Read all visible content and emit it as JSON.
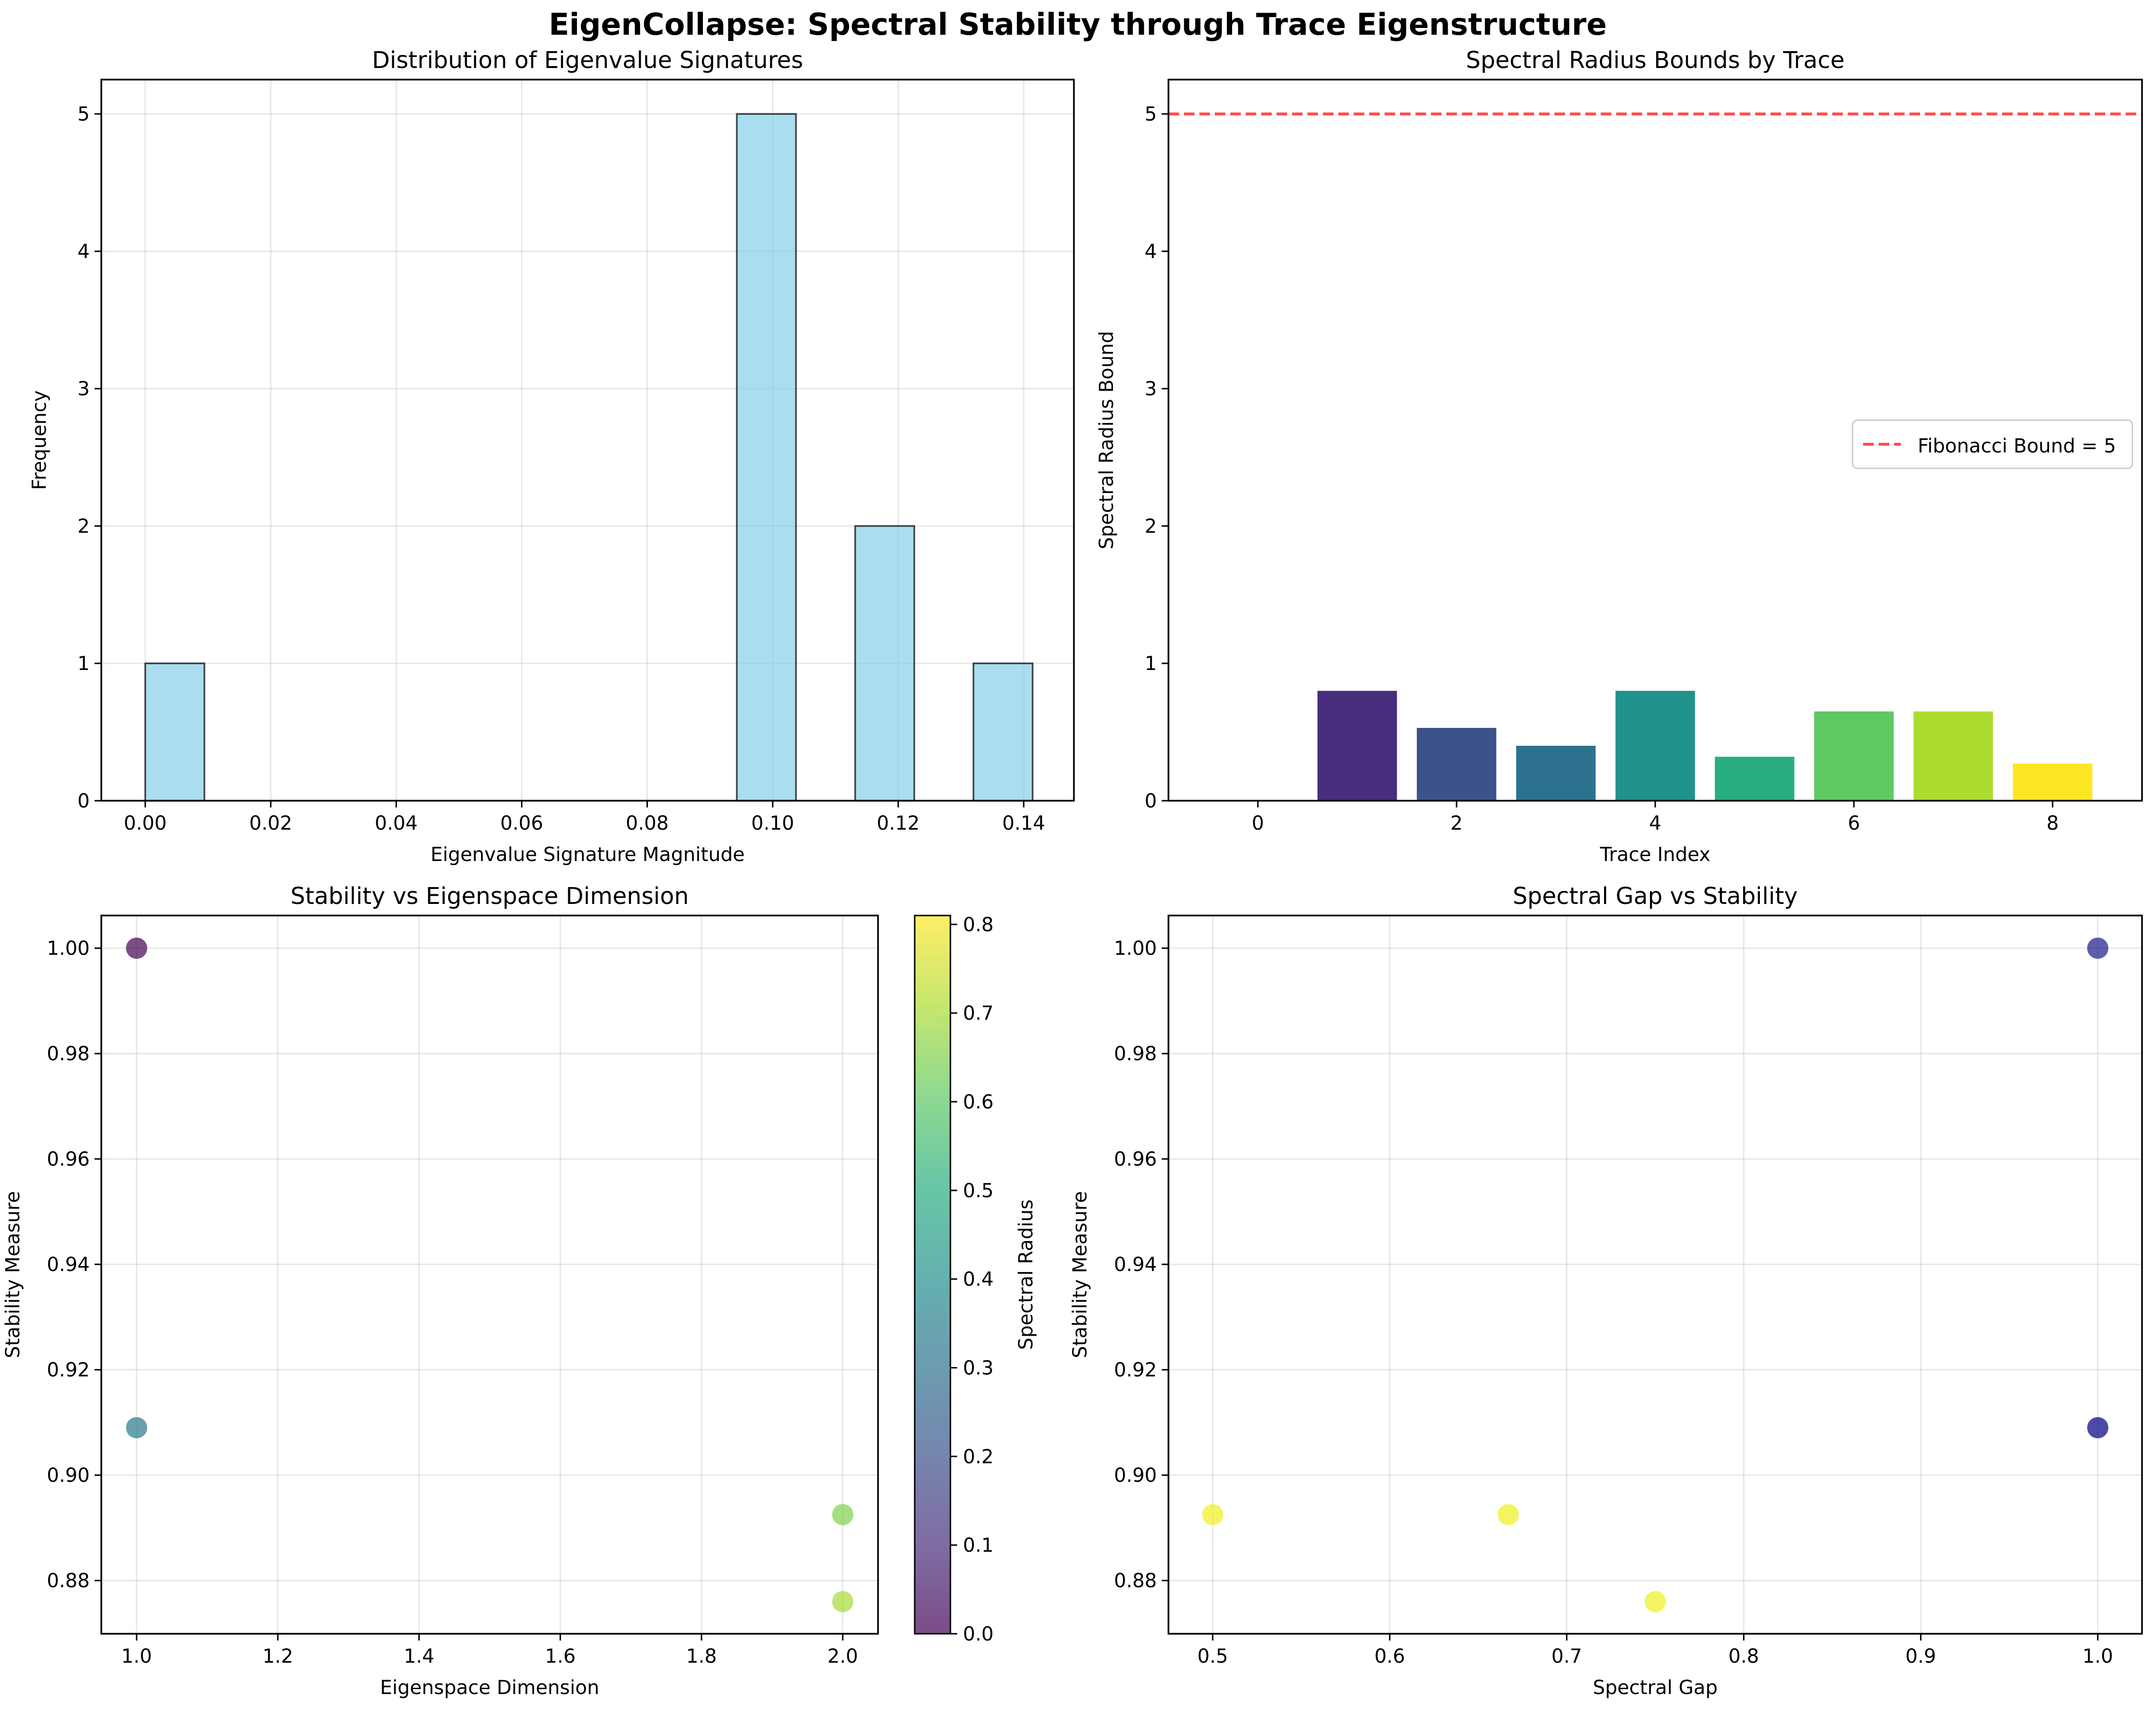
{
  "figure": {
    "title": "EigenCollapse: Spectral Stability through Trace Eigenstructure"
  },
  "chart_data": [
    {
      "type": "bar",
      "subtype": "histogram",
      "title": "Distribution of Eigenvalue Signatures",
      "xlabel": "Eigenvalue Signature Magnitude",
      "ylabel": "Frequency",
      "xlim": [
        -0.007,
        0.148
      ],
      "ylim": [
        0,
        5.25
      ],
      "xticks": [
        0.0,
        0.02,
        0.04,
        0.06,
        0.08,
        0.1,
        0.12,
        0.14
      ],
      "xtick_labels": [
        "0.00",
        "0.02",
        "0.04",
        "0.06",
        "0.08",
        "0.10",
        "0.12",
        "0.14"
      ],
      "yticks": [
        0,
        1,
        2,
        3,
        4,
        5
      ],
      "ytick_labels": [
        "0",
        "1",
        "2",
        "3",
        "4",
        "5"
      ],
      "bins": [
        {
          "x0": 0.0,
          "x1": 0.00943,
          "count": 1
        },
        {
          "x0": 0.00943,
          "x1": 0.01886,
          "count": 0
        },
        {
          "x0": 0.01886,
          "x1": 0.02828,
          "count": 0
        },
        {
          "x0": 0.02828,
          "x1": 0.03771,
          "count": 0
        },
        {
          "x0": 0.03771,
          "x1": 0.04714,
          "count": 0
        },
        {
          "x0": 0.04714,
          "x1": 0.05657,
          "count": 0
        },
        {
          "x0": 0.05657,
          "x1": 0.066,
          "count": 0
        },
        {
          "x0": 0.066,
          "x1": 0.07542,
          "count": 0
        },
        {
          "x0": 0.07542,
          "x1": 0.08485,
          "count": 0
        },
        {
          "x0": 0.08485,
          "x1": 0.09428,
          "count": 0
        },
        {
          "x0": 0.09428,
          "x1": 0.10371,
          "count": 5
        },
        {
          "x0": 0.10371,
          "x1": 0.11314,
          "count": 0
        },
        {
          "x0": 0.11314,
          "x1": 0.12256,
          "count": 2
        },
        {
          "x0": 0.12256,
          "x1": 0.13199,
          "count": 0
        },
        {
          "x0": 0.13199,
          "x1": 0.14142,
          "count": 1
        }
      ],
      "color": "#87ceeb",
      "grid": true
    },
    {
      "type": "bar",
      "title": "Spectral Radius Bounds by Trace",
      "xlabel": "Trace Index",
      "ylabel": "Spectral Radius Bound",
      "xlim": [
        -0.9,
        8.9
      ],
      "ylim": [
        0,
        5.25
      ],
      "xticks": [
        0,
        2,
        4,
        6,
        8
      ],
      "xtick_labels": [
        "0",
        "2",
        "4",
        "6",
        "8"
      ],
      "yticks": [
        0,
        1,
        2,
        3,
        4,
        5
      ],
      "ytick_labels": [
        "0",
        "1",
        "2",
        "3",
        "4",
        "5"
      ],
      "x": [
        0,
        1,
        2,
        3,
        4,
        5,
        6,
        7,
        8
      ],
      "values": [
        0.0,
        0.8,
        0.53,
        0.4,
        0.8,
        0.32,
        0.65,
        0.65,
        0.27
      ],
      "colors": [
        "#440154",
        "#472d7b",
        "#3b528b",
        "#2c728e",
        "#21918c",
        "#28ae80",
        "#5ec962",
        "#addc30",
        "#fde725"
      ],
      "reference_line": {
        "y": 5,
        "label": "Fibonacci Bound = 5",
        "color": "#ff0000"
      },
      "legend": "center-right",
      "grid": false
    },
    {
      "type": "scatter",
      "title": "Stability vs Eigenspace Dimension",
      "xlabel": "Eigenspace Dimension",
      "ylabel": "Stability Measure",
      "xlim": [
        0.95,
        2.05
      ],
      "ylim": [
        0.8699,
        1.0062
      ],
      "xticks": [
        1.0,
        1.2,
        1.4,
        1.6,
        1.8,
        2.0
      ],
      "xtick_labels": [
        "1.0",
        "1.2",
        "1.4",
        "1.6",
        "1.8",
        "2.0"
      ],
      "yticks": [
        0.88,
        0.9,
        0.92,
        0.94,
        0.96,
        0.98,
        1.0
      ],
      "ytick_labels": [
        "0.88",
        "0.90",
        "0.92",
        "0.94",
        "0.96",
        "0.98",
        "1.00"
      ],
      "points": [
        {
          "x": 1.0,
          "y": 1.0,
          "c": 0.0
        },
        {
          "x": 1.0,
          "y": 0.909,
          "c": 0.32
        },
        {
          "x": 2.0,
          "y": 0.8925,
          "c": 0.65
        },
        {
          "x": 2.0,
          "y": 0.876,
          "c": 0.7
        }
      ],
      "colorbar": {
        "label": "Spectral Radius",
        "range": [
          0,
          0.81
        ],
        "ticks": [
          0.0,
          0.1,
          0.2,
          0.3,
          0.4,
          0.5,
          0.6,
          0.7,
          0.8
        ],
        "tick_labels": [
          "0.0",
          "0.1",
          "0.2",
          "0.3",
          "0.4",
          "0.5",
          "0.6",
          "0.7",
          "0.8"
        ],
        "colormap": "viridis"
      },
      "grid": true
    },
    {
      "type": "scatter",
      "title": "Spectral Gap vs Stability",
      "xlabel": "Spectral Gap",
      "ylabel": "Stability Measure",
      "xlim": [
        0.475,
        1.025
      ],
      "ylim": [
        0.8699,
        1.0062
      ],
      "xticks": [
        0.5,
        0.6,
        0.7,
        0.8,
        0.9,
        1.0
      ],
      "xtick_labels": [
        "0.5",
        "0.6",
        "0.7",
        "0.8",
        "0.9",
        "1.0"
      ],
      "yticks": [
        0.88,
        0.9,
        0.92,
        0.94,
        0.96,
        0.98,
        1.0
      ],
      "ytick_labels": [
        "0.88",
        "0.90",
        "0.92",
        "0.94",
        "0.96",
        "0.98",
        "1.00"
      ],
      "points": [
        {
          "x": 1.0,
          "y": 1.0,
          "color": "#1a1a8c"
        },
        {
          "x": 1.0,
          "y": 0.909,
          "color": "#000080"
        },
        {
          "x": 0.5,
          "y": 0.8925,
          "color": "#f0f020"
        },
        {
          "x": 0.667,
          "y": 0.8925,
          "color": "#f0f020"
        },
        {
          "x": 0.75,
          "y": 0.876,
          "color": "#f0f020"
        }
      ],
      "grid": true
    }
  ]
}
